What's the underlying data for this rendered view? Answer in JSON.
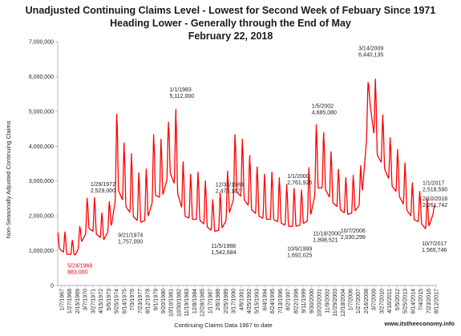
{
  "chart_data": {
    "type": "line",
    "title_lines": [
      "Unadjusted Continuing Claims Level - Lowest for Second Week of Febuary Since 1971",
      "Heading Lower - Generally through the End of May",
      "February 22, 2018"
    ],
    "xlabel": "Continuing Claims Data 1967 to date",
    "ylabel": "Non-Seasonally Adjusted Continuing Claims",
    "credit": "www.itstheeconomy.info",
    "ylim": [
      0,
      7000000
    ],
    "y_ticks": [
      {
        "value": 0,
        "label": "0"
      },
      {
        "value": 1000000,
        "label": "1,000,000"
      },
      {
        "value": 2000000,
        "label": "2,000,000"
      },
      {
        "value": 3000000,
        "label": "3,000,000"
      },
      {
        "value": 4000000,
        "label": "4,000,000"
      },
      {
        "value": 5000000,
        "label": "5,000,000"
      },
      {
        "value": 6000000,
        "label": "6,000,000"
      },
      {
        "value": 7000000,
        "label": "7,000,000"
      }
    ],
    "x_tick_labels": [
      "1/7/1967",
      "1/27/1968",
      "2/15/1969",
      "3/7/1970",
      "3/27/1971",
      "4/15/1972",
      "5/5/1973",
      "5/25/1974",
      "6/14/1975",
      "7/3/1976",
      "7/23/1977",
      "8/12/1978",
      "9/1/1979",
      "9/20/1980",
      "10/10/1981",
      "10/30/1982",
      "11/19/1983",
      "12/8/1984",
      "12/28/1985",
      "1/17/1987",
      "2/6/1988",
      "2/25/1989",
      "3/17/1990",
      "4/6/1991",
      "4/25/1992",
      "5/15/1993",
      "6/4/1994",
      "6/24/1995",
      "7/13/1996",
      "8/2/1997",
      "8/22/1998",
      "9/11/1999",
      "9/30/2000",
      "10/20/2001",
      "11/9/2002",
      "11/29/2003",
      "12/18/2004",
      "1/7/2006",
      "1/27/2007",
      "2/16/2008",
      "3/7/2009",
      "3/27/2010",
      "4/16/2011",
      "5/5/2012",
      "5/25/2013",
      "6/14/2014",
      "7/4/2015",
      "7/23/2016",
      "8/12/2017"
    ],
    "series": [
      {
        "color": "#ff0000",
        "envelope": [
          {
            "x": 1967.02,
            "peak": 1600000,
            "trough": 1100000
          },
          {
            "x": 1968.05,
            "peak": 1550000,
            "trough": 900000
          },
          {
            "x": 1969.4,
            "peak": 1200000,
            "trough": 883000
          },
          {
            "x": 1970.2,
            "peak": 1900000,
            "trough": 1250000
          },
          {
            "x": 1971.2,
            "peak": 2700000,
            "trough": 1650000
          },
          {
            "x": 1972.08,
            "peak": 2529000,
            "trough": 1500000
          },
          {
            "x": 1973.2,
            "peak": 2000000,
            "trough": 1300000
          },
          {
            "x": 1974.3,
            "peak": 2600000,
            "trough": 1757000
          },
          {
            "x": 1975.05,
            "peak": 5200000,
            "trough": 2800000
          },
          {
            "x": 1976.1,
            "peak": 4000000,
            "trough": 2300000
          },
          {
            "x": 1977.1,
            "peak": 3800000,
            "trough": 2000000
          },
          {
            "x": 1978.1,
            "peak": 3200000,
            "trough": 1800000
          },
          {
            "x": 1979.1,
            "peak": 3400000,
            "trough": 1900000
          },
          {
            "x": 1980.1,
            "peak": 4500000,
            "trough": 2600000
          },
          {
            "x": 1981.1,
            "peak": 4200000,
            "trough": 2500000
          },
          {
            "x": 1982.1,
            "peak": 4800000,
            "trough": 3300000
          },
          {
            "x": 1983.0,
            "peak": 5112000,
            "trough": 2800000
          },
          {
            "x": 1984.1,
            "peak": 3400000,
            "trough": 2000000
          },
          {
            "x": 1985.1,
            "peak": 3200000,
            "trough": 1900000
          },
          {
            "x": 1986.1,
            "peak": 3300000,
            "trough": 1900000
          },
          {
            "x": 1987.1,
            "peak": 3000000,
            "trough": 1700000
          },
          {
            "x": 1988.0,
            "peak": 2473187,
            "trough": 1542684
          },
          {
            "x": 1989.1,
            "peak": 2700000,
            "trough": 1600000
          },
          {
            "x": 1990.1,
            "peak": 3400000,
            "trough": 2000000
          },
          {
            "x": 1991.1,
            "peak": 4500000,
            "trough": 2700000
          },
          {
            "x": 1992.1,
            "peak": 4200000,
            "trough": 2500000
          },
          {
            "x": 1993.1,
            "peak": 3700000,
            "trough": 2200000
          },
          {
            "x": 1994.1,
            "peak": 3400000,
            "trough": 2000000
          },
          {
            "x": 1995.1,
            "peak": 3200000,
            "trough": 1900000
          },
          {
            "x": 1996.1,
            "peak": 3300000,
            "trough": 1900000
          },
          {
            "x": 1997.1,
            "peak": 3100000,
            "trough": 1800000
          },
          {
            "x": 1998.1,
            "peak": 2900000,
            "trough": 1700000
          },
          {
            "x": 1999.1,
            "peak": 2800000,
            "trough": 1692025
          },
          {
            "x": 2000.0,
            "peak": 2761926,
            "trough": 1750000
          },
          {
            "x": 2001.1,
            "peak": 3500000,
            "trough": 1898521
          },
          {
            "x": 2002.0,
            "peak": 4685080,
            "trough": 2800000
          },
          {
            "x": 2003.1,
            "peak": 4400000,
            "trough": 2800000
          },
          {
            "x": 2004.1,
            "peak": 3800000,
            "trough": 2400000
          },
          {
            "x": 2005.1,
            "peak": 3300000,
            "trough": 2200000
          },
          {
            "x": 2006.1,
            "peak": 3100000,
            "trough": 2030299
          },
          {
            "x": 2007.1,
            "peak": 3200000,
            "trough": 2100000
          },
          {
            "x": 2008.1,
            "peak": 3500000,
            "trough": 2400000
          },
          {
            "x": 2009.2,
            "peak": 6440135,
            "trough": 5300000
          },
          {
            "x": 2010.1,
            "peak": 5900000,
            "trough": 3800000
          },
          {
            "x": 2011.1,
            "peak": 4800000,
            "trough": 3400000
          },
          {
            "x": 2012.1,
            "peak": 4200000,
            "trough": 2900000
          },
          {
            "x": 2013.1,
            "peak": 3900000,
            "trough": 2600000
          },
          {
            "x": 2014.1,
            "peak": 3500000,
            "trough": 2200000
          },
          {
            "x": 2015.1,
            "peak": 2900000,
            "trough": 1900000
          },
          {
            "x": 2016.1,
            "peak": 2700000,
            "trough": 1800000
          },
          {
            "x": 2017.0,
            "peak": 2518590,
            "trough": 1565746
          },
          {
            "x": 2018.12,
            "peak": 2261742,
            "trough": 2261742
          }
        ]
      }
    ],
    "annotations": [
      {
        "lines": [
          "5/24/1969",
          "883,000"
        ],
        "x": 1969.4,
        "value": 883000,
        "color": "red"
      },
      {
        "lines": [
          "1/29/1972",
          "2,529,000"
        ],
        "x": 1972.08,
        "value": 2529000
      },
      {
        "lines": [
          "9/21/1974",
          "1,757,000"
        ],
        "x": 1974.72,
        "value": 1757000
      },
      {
        "lines": [
          "1/1/1983",
          "5,112,000"
        ],
        "x": 1983.0,
        "value": 5112000
      },
      {
        "lines": [
          "12/31/1988",
          "2,473,187"
        ],
        "x": 1988.99,
        "value": 2473187
      },
      {
        "lines": [
          "11/5/1988",
          "1,542,684"
        ],
        "x": 1988.85,
        "value": 1542684
      },
      {
        "lines": [
          "1/5/2002",
          "4,685,080"
        ],
        "x": 2002.01,
        "value": 4685080
      },
      {
        "lines": [
          "1/1/2000",
          "2,761,926"
        ],
        "x": 2000.0,
        "value": 2761926
      },
      {
        "lines": [
          "11/18/2000",
          "1,898,521"
        ],
        "x": 2000.88,
        "value": 1898521
      },
      {
        "lines": [
          "10/9/1999",
          "1,692,025"
        ],
        "x": 1999.77,
        "value": 1692025
      },
      {
        "lines": [
          "10/7/2006",
          "2,030,299"
        ],
        "x": 2006.77,
        "value": 2030299
      },
      {
        "lines": [
          "3/14/2009",
          "6,440,135"
        ],
        "x": 2009.2,
        "value": 6440135
      },
      {
        "lines": [
          "1/1/2017",
          "2,518,590"
        ],
        "x": 2017.0,
        "value": 2518590
      },
      {
        "lines": [
          "2/10/2018",
          "2,261,742"
        ],
        "x": 2018.11,
        "value": 2261742
      },
      {
        "lines": [
          "10/7/2017",
          "1,565,746"
        ],
        "x": 2017.77,
        "value": 1565746
      }
    ]
  }
}
